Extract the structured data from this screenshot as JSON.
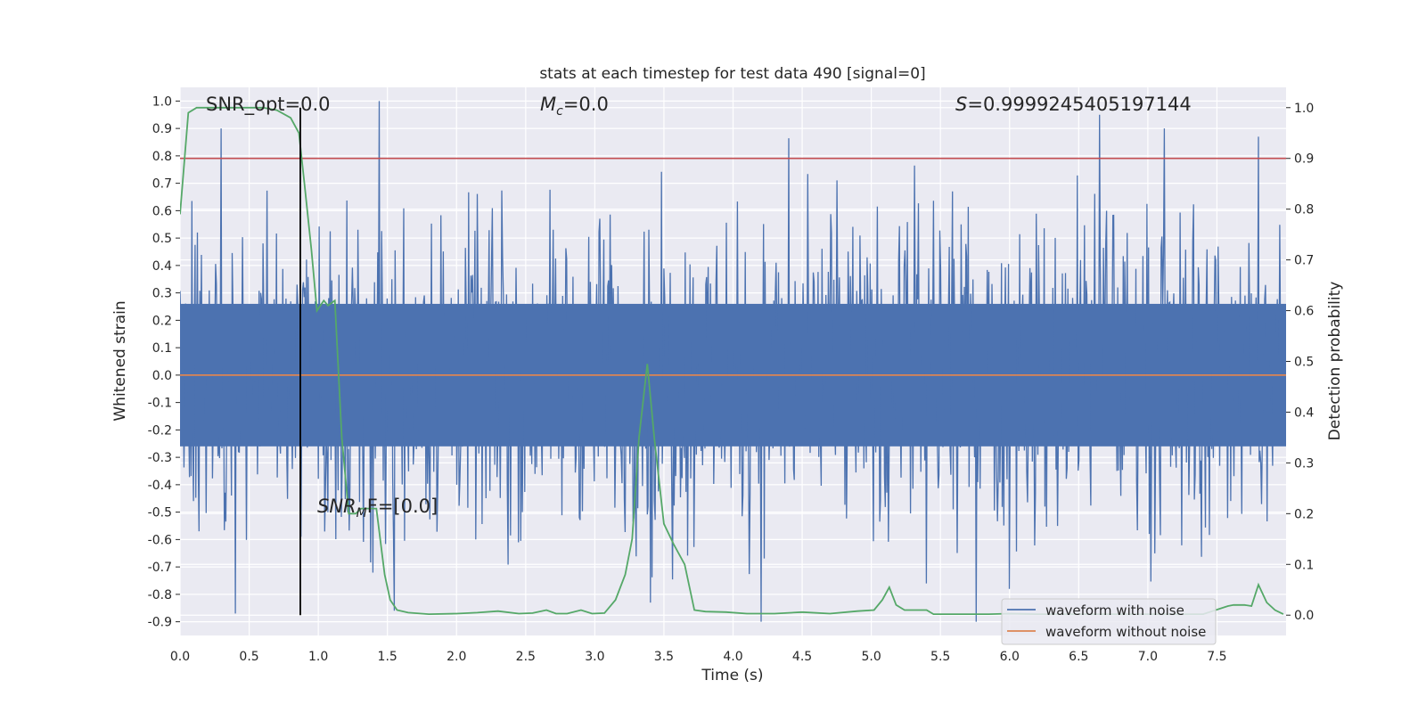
{
  "chart_data": {
    "type": "line",
    "title": "stats at each timestep for test data 490 [signal=0]",
    "xlabel": "Time (s)",
    "ylabel_left": "Whitened strain",
    "ylabel_right": "Detection probability",
    "xlim": [
      0.0,
      8.0
    ],
    "ylim_left": [
      -0.95,
      1.05
    ],
    "ylim_right": [
      -0.04,
      1.04
    ],
    "x_ticks": [
      "0.0",
      "0.5",
      "1.0",
      "1.5",
      "2.0",
      "2.5",
      "3.0",
      "3.5",
      "4.0",
      "4.5",
      "5.0",
      "5.5",
      "6.0",
      "6.5",
      "7.0",
      "7.5"
    ],
    "y_ticks_left": [
      "1.0",
      "0.9",
      "0.8",
      "0.7",
      "0.6",
      "0.5",
      "0.4",
      "0.3",
      "0.2",
      "0.1",
      "0.0",
      "-0.1",
      "-0.2",
      "-0.3",
      "-0.4",
      "-0.5",
      "-0.6",
      "-0.7",
      "-0.8",
      "-0.9"
    ],
    "y_ticks_right": [
      "1.0",
      "0.9",
      "0.8",
      "0.7",
      "0.6",
      "0.5",
      "0.4",
      "0.3",
      "0.2",
      "0.1",
      "0.0"
    ],
    "grid": true,
    "legend_position": "lower-right",
    "annotations": {
      "snr_opt": "SNR_opt=0.0",
      "mc_symbol": "M",
      "mc_sub": "c",
      "mc_value": "=0.0",
      "s_symbol": "S",
      "s_value": "=0.9999245405197144",
      "snr_mf_symbol": "SNR",
      "snr_mf_sub": "M",
      "snr_mf_value": "F=[0.0]"
    },
    "threshold_right": 0.9,
    "marker_time": 0.87,
    "noise_strain": {
      "description": "dense whitened noise, roughly -0.5 to 0.5 with spikes",
      "n_samples": 1400,
      "notable_spikes": [
        [
          1.44,
          1.0
        ],
        [
          6.65,
          0.95
        ],
        [
          7.8,
          0.87
        ],
        [
          0.4,
          -0.87
        ],
        [
          1.55,
          -0.86
        ],
        [
          3.4,
          -0.83
        ],
        [
          5.4,
          -0.76
        ],
        [
          6.0,
          -0.78
        ]
      ]
    },
    "series": [
      {
        "name": "waveform with noise",
        "color": "#4c72b0",
        "axis": "left"
      },
      {
        "name": "waveform without noise",
        "color": "#dd8452",
        "axis": "left",
        "x": [
          0.0,
          8.0
        ],
        "y": [
          0.0,
          0.0
        ]
      },
      {
        "name": "",
        "color": "#55a868",
        "axis": "right",
        "x": [
          0.0,
          0.06,
          0.12,
          0.2,
          0.3,
          0.45,
          0.6,
          0.7,
          0.8,
          0.86,
          0.9,
          0.95,
          0.99,
          1.04,
          1.07,
          1.12,
          1.17,
          1.22,
          1.27,
          1.31,
          1.35,
          1.42,
          1.48,
          1.52,
          1.57,
          1.65,
          1.8,
          2.0,
          2.15,
          2.3,
          2.45,
          2.55,
          2.65,
          2.72,
          2.8,
          2.9,
          2.98,
          3.07,
          3.15,
          3.22,
          3.27,
          3.32,
          3.38,
          3.43,
          3.5,
          3.57,
          3.65,
          3.72,
          3.8,
          3.95,
          4.1,
          4.3,
          4.5,
          4.7,
          4.9,
          5.02,
          5.08,
          5.13,
          5.18,
          5.24,
          5.3,
          5.4,
          5.45,
          5.55,
          5.7,
          5.85,
          6.0,
          6.2,
          6.5,
          6.8,
          7.1,
          7.4,
          7.58,
          7.62,
          7.7,
          7.75,
          7.8,
          7.86,
          7.92,
          7.98
        ],
        "y": [
          0.79,
          0.99,
          1.0,
          1.0,
          1.0,
          1.0,
          1.0,
          0.995,
          0.98,
          0.95,
          0.85,
          0.72,
          0.6,
          0.62,
          0.61,
          0.62,
          0.35,
          0.2,
          0.2,
          0.21,
          0.21,
          0.21,
          0.08,
          0.03,
          0.01,
          0.005,
          0.002,
          0.003,
          0.005,
          0.008,
          0.003,
          0.004,
          0.01,
          0.003,
          0.003,
          0.01,
          0.003,
          0.004,
          0.03,
          0.08,
          0.15,
          0.35,
          0.495,
          0.35,
          0.18,
          0.14,
          0.1,
          0.01,
          0.007,
          0.006,
          0.003,
          0.003,
          0.006,
          0.003,
          0.008,
          0.01,
          0.03,
          0.055,
          0.02,
          0.01,
          0.01,
          0.01,
          0.002,
          0.002,
          0.002,
          0.002,
          0.003,
          0.002,
          0.002,
          0.002,
          0.002,
          0.002,
          0.018,
          0.02,
          0.02,
          0.018,
          0.06,
          0.025,
          0.01,
          0.002
        ]
      }
    ]
  }
}
